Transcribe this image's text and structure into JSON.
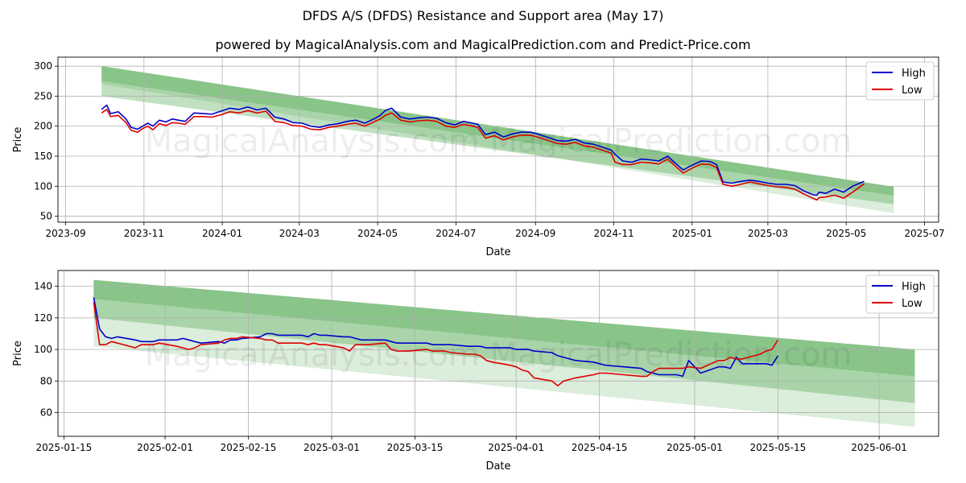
{
  "title": "DFDS A/S (DFDS) Resistance and Support area (May 17)",
  "subtitle": "powered by MagicalAnalysis.com and MagicalPrediction.com and Predict-Price.com",
  "watermark": "MagicalAnalysis.com   MagicalPrediction.com",
  "colors": {
    "high": "#0000cc",
    "low": "#dd0000",
    "band": "#4ca64c"
  },
  "chart_data": [
    {
      "type": "line",
      "xlabel": "Date",
      "ylabel": "Price",
      "xlim": [
        "2023-08-26",
        "2025-07-12"
      ],
      "ylim": [
        40,
        315
      ],
      "grid": true,
      "legend": "top-right",
      "xticks": [
        "2023-09",
        "2023-11",
        "2024-01",
        "2024-03",
        "2024-05",
        "2024-07",
        "2024-09",
        "2024-11",
        "2025-01",
        "2025-03",
        "2025-05",
        "2025-07"
      ],
      "yticks": [
        50,
        100,
        150,
        200,
        250,
        300
      ],
      "band": {
        "x": [
          "2023-09-29",
          "2025-06-07"
        ],
        "upper": [
          300,
          99
        ],
        "lower": [
          270,
          55
        ],
        "inner": [
          250,
          70
        ]
      },
      "series": [
        {
          "name": "High",
          "x": [
            "2023-09-29",
            "2023-10-03",
            "2023-10-06",
            "2023-10-12",
            "2023-10-18",
            "2023-10-22",
            "2023-10-27",
            "2023-10-31",
            "2023-11-04",
            "2023-11-08",
            "2023-11-13",
            "2023-11-18",
            "2023-11-23",
            "2023-11-28",
            "2023-12-03",
            "2023-12-10",
            "2023-12-17",
            "2023-12-24",
            "2023-12-31",
            "2024-01-07",
            "2024-01-14",
            "2024-01-21",
            "2024-01-28",
            "2024-02-04",
            "2024-02-11",
            "2024-02-18",
            "2024-02-25",
            "2024-03-03",
            "2024-03-10",
            "2024-03-17",
            "2024-03-24",
            "2024-03-31",
            "2024-04-07",
            "2024-04-14",
            "2024-04-21",
            "2024-04-28",
            "2024-05-03",
            "2024-05-07",
            "2024-05-12",
            "2024-05-19",
            "2024-05-26",
            "2024-06-02",
            "2024-06-09",
            "2024-06-16",
            "2024-06-23",
            "2024-06-30",
            "2024-07-07",
            "2024-07-14",
            "2024-07-18",
            "2024-07-24",
            "2024-07-31",
            "2024-08-07",
            "2024-08-14",
            "2024-08-21",
            "2024-08-28",
            "2024-09-04",
            "2024-09-11",
            "2024-09-18",
            "2024-09-25",
            "2024-10-02",
            "2024-10-09",
            "2024-10-16",
            "2024-10-23",
            "2024-10-30",
            "2024-11-02",
            "2024-11-08",
            "2024-11-15",
            "2024-11-22",
            "2024-11-29",
            "2024-12-06",
            "2024-12-13",
            "2024-12-18",
            "2024-12-25",
            "2025-01-01",
            "2025-01-08",
            "2025-01-15",
            "2025-01-20",
            "2025-01-25",
            "2025-02-01",
            "2025-02-08",
            "2025-02-15",
            "2025-02-22",
            "2025-03-01",
            "2025-03-08",
            "2025-03-15",
            "2025-03-22",
            "2025-03-29",
            "2025-04-05",
            "2025-04-08",
            "2025-04-10",
            "2025-04-15",
            "2025-04-22",
            "2025-04-29",
            "2025-05-06",
            "2025-05-15"
          ],
          "y": [
            228,
            235,
            221,
            224,
            212,
            198,
            195,
            200,
            205,
            200,
            210,
            207,
            212,
            210,
            208,
            222,
            221,
            220,
            225,
            230,
            228,
            232,
            227,
            230,
            215,
            212,
            206,
            205,
            200,
            198,
            202,
            204,
            208,
            210,
            205,
            212,
            218,
            226,
            230,
            215,
            212,
            214,
            215,
            213,
            206,
            202,
            208,
            205,
            203,
            186,
            190,
            182,
            187,
            190,
            190,
            186,
            181,
            176,
            175,
            178,
            172,
            170,
            165,
            160,
            153,
            142,
            140,
            145,
            144,
            142,
            150,
            140,
            127,
            135,
            142,
            141,
            136,
            107,
            105,
            108,
            110,
            108,
            105,
            103,
            103,
            101,
            92,
            86,
            85,
            90,
            88,
            95,
            90,
            100,
            108
          ]
        },
        {
          "name": "Low",
          "x": [
            "2023-09-29",
            "2023-10-03",
            "2023-10-06",
            "2023-10-12",
            "2023-10-18",
            "2023-10-22",
            "2023-10-27",
            "2023-10-31",
            "2023-11-04",
            "2023-11-08",
            "2023-11-13",
            "2023-11-18",
            "2023-11-23",
            "2023-11-28",
            "2023-12-03",
            "2023-12-10",
            "2023-12-17",
            "2023-12-24",
            "2023-12-31",
            "2024-01-07",
            "2024-01-14",
            "2024-01-21",
            "2024-01-28",
            "2024-02-04",
            "2024-02-11",
            "2024-02-18",
            "2024-02-25",
            "2024-03-03",
            "2024-03-10",
            "2024-03-17",
            "2024-03-24",
            "2024-03-31",
            "2024-04-07",
            "2024-04-14",
            "2024-04-21",
            "2024-04-28",
            "2024-05-03",
            "2024-05-07",
            "2024-05-12",
            "2024-05-19",
            "2024-05-26",
            "2024-06-02",
            "2024-06-09",
            "2024-06-16",
            "2024-06-23",
            "2024-06-30",
            "2024-07-07",
            "2024-07-14",
            "2024-07-18",
            "2024-07-24",
            "2024-07-31",
            "2024-08-07",
            "2024-08-14",
            "2024-08-21",
            "2024-08-28",
            "2024-09-04",
            "2024-09-11",
            "2024-09-18",
            "2024-09-25",
            "2024-10-02",
            "2024-10-09",
            "2024-10-16",
            "2024-10-23",
            "2024-10-30",
            "2024-11-02",
            "2024-11-08",
            "2024-11-15",
            "2024-11-22",
            "2024-11-29",
            "2024-12-06",
            "2024-12-13",
            "2024-12-18",
            "2024-12-25",
            "2025-01-01",
            "2025-01-08",
            "2025-01-15",
            "2025-01-20",
            "2025-01-25",
            "2025-02-01",
            "2025-02-08",
            "2025-02-15",
            "2025-02-22",
            "2025-03-01",
            "2025-03-08",
            "2025-03-15",
            "2025-03-22",
            "2025-03-29",
            "2025-04-05",
            "2025-04-08",
            "2025-04-10",
            "2025-04-15",
            "2025-04-22",
            "2025-04-29",
            "2025-05-06",
            "2025-05-15"
          ],
          "y": [
            222,
            228,
            216,
            218,
            206,
            193,
            190,
            196,
            200,
            194,
            204,
            201,
            206,
            205,
            203,
            216,
            216,
            215,
            219,
            224,
            222,
            226,
            222,
            225,
            208,
            206,
            201,
            200,
            195,
            194,
            198,
            200,
            203,
            205,
            200,
            207,
            212,
            218,
            222,
            210,
            207,
            209,
            210,
            208,
            200,
            198,
            203,
            200,
            198,
            180,
            184,
            177,
            182,
            185,
            185,
            181,
            176,
            171,
            170,
            173,
            167,
            165,
            160,
            155,
            140,
            136,
            136,
            140,
            139,
            137,
            145,
            135,
            122,
            130,
            137,
            136,
            131,
            103,
            100,
            103,
            107,
            104,
            101,
            99,
            98,
            95,
            87,
            80,
            77,
            81,
            82,
            85,
            80,
            90,
            104
          ]
        }
      ]
    },
    {
      "type": "line",
      "xlabel": "Date",
      "ylabel": "Price",
      "xlim": [
        "2025-01-14",
        "2025-06-11"
      ],
      "ylim": [
        45,
        150
      ],
      "grid": true,
      "legend": "top-right",
      "xticks": [
        "2025-01-15",
        "2025-02-01",
        "2025-02-15",
        "2025-03-01",
        "2025-03-15",
        "2025-04-01",
        "2025-04-15",
        "2025-05-01",
        "2025-05-15",
        "2025-06-01"
      ],
      "yticks": [
        60,
        80,
        100,
        120,
        140
      ],
      "band": {
        "x": [
          "2025-01-20",
          "2025-06-07"
        ],
        "upper": [
          144,
          100
        ],
        "lower": [
          102,
          51
        ],
        "inner": [
          120,
          66
        ]
      },
      "series": [
        {
          "name": "High",
          "x": [
            "2025-01-20",
            "2025-01-21",
            "2025-01-22",
            "2025-01-23",
            "2025-01-24",
            "2025-01-27",
            "2025-01-28",
            "2025-01-29",
            "2025-01-30",
            "2025-01-31",
            "2025-02-03",
            "2025-02-04",
            "2025-02-05",
            "2025-02-06",
            "2025-02-07",
            "2025-02-10",
            "2025-02-11",
            "2025-02-12",
            "2025-02-13",
            "2025-02-14",
            "2025-02-17",
            "2025-02-18",
            "2025-02-19",
            "2025-02-20",
            "2025-02-21",
            "2025-02-24",
            "2025-02-25",
            "2025-02-26",
            "2025-02-27",
            "2025-02-28",
            "2025-03-03",
            "2025-03-04",
            "2025-03-05",
            "2025-03-06",
            "2025-03-07",
            "2025-03-10",
            "2025-03-11",
            "2025-03-12",
            "2025-03-13",
            "2025-03-14",
            "2025-03-17",
            "2025-03-18",
            "2025-03-19",
            "2025-03-20",
            "2025-03-21",
            "2025-03-24",
            "2025-03-25",
            "2025-03-26",
            "2025-03-27",
            "2025-03-28",
            "2025-03-31",
            "2025-04-01",
            "2025-04-02",
            "2025-04-03",
            "2025-04-04",
            "2025-04-07",
            "2025-04-08",
            "2025-04-09",
            "2025-04-10",
            "2025-04-11",
            "2025-04-14",
            "2025-04-15",
            "2025-04-16",
            "2025-04-22",
            "2025-04-23",
            "2025-04-24",
            "2025-04-25",
            "2025-04-28",
            "2025-04-29",
            "2025-04-30",
            "2025-05-02",
            "2025-05-05",
            "2025-05-06",
            "2025-05-07",
            "2025-05-08",
            "2025-05-09",
            "2025-05-12",
            "2025-05-13",
            "2025-05-14",
            "2025-05-15"
          ],
          "y": [
            133,
            113,
            108,
            107,
            108,
            106,
            105,
            105,
            105,
            106,
            106,
            107,
            106,
            105,
            104,
            105,
            104,
            106,
            106,
            107,
            108,
            110,
            110,
            109,
            109,
            109,
            108,
            110,
            109,
            109,
            108,
            108,
            107,
            106,
            106,
            106,
            105,
            104,
            104,
            104,
            104,
            103,
            103,
            103,
            103,
            102,
            102,
            102,
            101,
            101,
            101,
            100,
            100,
            100,
            99,
            98,
            96,
            95,
            94,
            93,
            92,
            91,
            90,
            88,
            86,
            85,
            84,
            84,
            83,
            93,
            85,
            89,
            89,
            88,
            95,
            91,
            91,
            91,
            90,
            96
          ]
        },
        {
          "name": "Low",
          "x": [
            "2025-01-20",
            "2025-01-21",
            "2025-01-22",
            "2025-01-23",
            "2025-01-24",
            "2025-01-27",
            "2025-01-28",
            "2025-01-29",
            "2025-01-30",
            "2025-01-31",
            "2025-02-03",
            "2025-02-04",
            "2025-02-05",
            "2025-02-06",
            "2025-02-07",
            "2025-02-10",
            "2025-02-11",
            "2025-02-12",
            "2025-02-13",
            "2025-02-14",
            "2025-02-17",
            "2025-02-18",
            "2025-02-19",
            "2025-02-20",
            "2025-02-21",
            "2025-02-24",
            "2025-02-25",
            "2025-02-26",
            "2025-02-27",
            "2025-02-28",
            "2025-03-03",
            "2025-03-04",
            "2025-03-05",
            "2025-03-06",
            "2025-03-07",
            "2025-03-10",
            "2025-03-11",
            "2025-03-12",
            "2025-03-13",
            "2025-03-14",
            "2025-03-17",
            "2025-03-18",
            "2025-03-19",
            "2025-03-20",
            "2025-03-21",
            "2025-03-24",
            "2025-03-25",
            "2025-03-26",
            "2025-03-27",
            "2025-03-28",
            "2025-03-31",
            "2025-04-01",
            "2025-04-02",
            "2025-04-03",
            "2025-04-04",
            "2025-04-07",
            "2025-04-08",
            "2025-04-09",
            "2025-04-10",
            "2025-04-11",
            "2025-04-14",
            "2025-04-15",
            "2025-04-16",
            "2025-04-22",
            "2025-04-23",
            "2025-04-24",
            "2025-04-25",
            "2025-04-28",
            "2025-04-29",
            "2025-04-30",
            "2025-05-02",
            "2025-05-05",
            "2025-05-06",
            "2025-05-07",
            "2025-05-08",
            "2025-05-09",
            "2025-05-12",
            "2025-05-13",
            "2025-05-14",
            "2025-05-15"
          ],
          "y": [
            130,
            103,
            103,
            105,
            104,
            101,
            103,
            103,
            103,
            104,
            102,
            101,
            100,
            101,
            103,
            104,
            106,
            107,
            107,
            108,
            107,
            106,
            106,
            104,
            104,
            104,
            103,
            104,
            103,
            103,
            101,
            99,
            103,
            103,
            103,
            104,
            100,
            99,
            99,
            99,
            100,
            99,
            99,
            99,
            98,
            97,
            97,
            96,
            93,
            92,
            90,
            89,
            87,
            86,
            82,
            80,
            77,
            80,
            81,
            82,
            84,
            85,
            85,
            83,
            83,
            86,
            88,
            88,
            88,
            89,
            88,
            93,
            93,
            95,
            94,
            94,
            97,
            99,
            100,
            106
          ]
        }
      ]
    }
  ]
}
